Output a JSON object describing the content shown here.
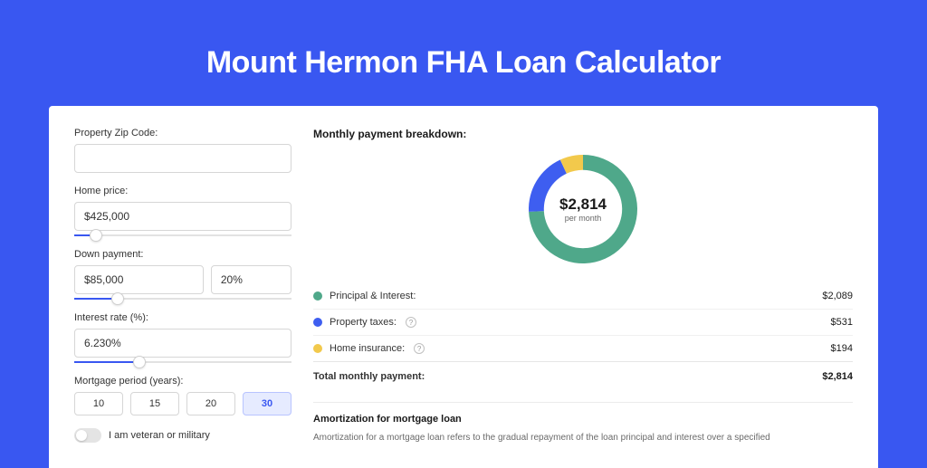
{
  "page": {
    "bg_color": "#3957f1",
    "panel_bg": "#ffffff",
    "title": "Mount Hermon FHA Loan Calculator"
  },
  "form": {
    "zip": {
      "label": "Property Zip Code:",
      "value": ""
    },
    "home_price": {
      "label": "Home price:",
      "value": "$425,000",
      "slider_pct": 10
    },
    "down_payment": {
      "label": "Down payment:",
      "amount": "$85,000",
      "percent": "20%",
      "slider_pct": 20
    },
    "interest": {
      "label": "Interest rate (%):",
      "value": "6.230%",
      "slider_pct": 30
    },
    "period": {
      "label": "Mortgage period (years):",
      "options": [
        "10",
        "15",
        "20",
        "30"
      ],
      "selected": "30"
    },
    "veteran": {
      "label": "I am veteran or military",
      "on": false
    }
  },
  "breakdown": {
    "title": "Monthly payment breakdown:",
    "center_amount": "$2,814",
    "center_sub": "per month",
    "donut": {
      "slices": [
        {
          "key": "pi",
          "color": "#4fa88a",
          "value": 2089
        },
        {
          "key": "taxes",
          "color": "#3e5ef0",
          "value": 531
        },
        {
          "key": "insurance",
          "color": "#f2c94c",
          "value": 194
        }
      ],
      "thickness_ratio": 0.28
    },
    "rows": [
      {
        "key": "pi",
        "label": "Principal & Interest:",
        "amount": "$2,089",
        "color": "#4fa88a",
        "help": false
      },
      {
        "key": "taxes",
        "label": "Property taxes:",
        "amount": "$531",
        "color": "#3e5ef0",
        "help": true
      },
      {
        "key": "insurance",
        "label": "Home insurance:",
        "amount": "$194",
        "color": "#f2c94c",
        "help": true
      }
    ],
    "total": {
      "label": "Total monthly payment:",
      "amount": "$2,814"
    }
  },
  "amortization": {
    "title": "Amortization for mortgage loan",
    "text": "Amortization for a mortgage loan refers to the gradual repayment of the loan principal and interest over a specified"
  }
}
